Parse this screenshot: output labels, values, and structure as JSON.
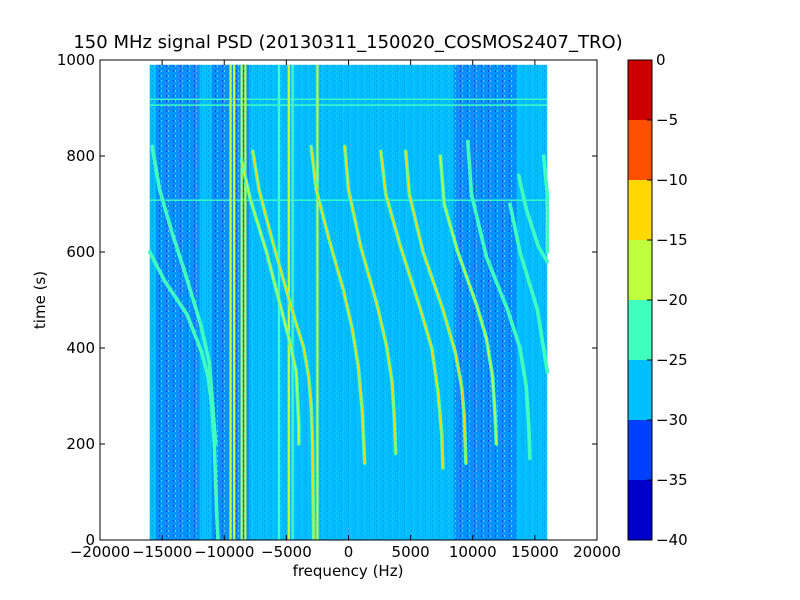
{
  "chart_data": {
    "type": "heatmap",
    "title": "150 MHz signal PSD (20130311_150020_COSMOS2407_TRO)",
    "xlabel": "frequency (Hz)",
    "ylabel": "time (s)",
    "xlim": [
      -20000,
      20000
    ],
    "ylim": [
      0,
      1000
    ],
    "x_ticks": [
      -20000,
      -15000,
      -10000,
      -5000,
      0,
      5000,
      10000,
      15000,
      20000
    ],
    "x_tick_labels": [
      "−20000",
      "−15000",
      "−10000",
      "−5000",
      "0",
      "5000",
      "10000",
      "15000",
      "20000"
    ],
    "y_ticks": [
      0,
      200,
      400,
      600,
      800,
      1000
    ],
    "y_tick_labels": [
      "0",
      "200",
      "400",
      "600",
      "800",
      "1000"
    ],
    "data_extent": {
      "x": [
        -16000,
        16000
      ],
      "y": [
        0,
        990
      ]
    },
    "background_level": -28,
    "colorbar": {
      "range": [
        -40,
        0
      ],
      "ticks": [
        0,
        -5,
        -10,
        -15,
        -20,
        -25,
        -30,
        -35,
        -40
      ],
      "tick_labels": [
        "0",
        "−5",
        "−10",
        "−15",
        "−20",
        "−25",
        "−30",
        "−35",
        "−40"
      ],
      "levels": [
        {
          "from": -40,
          "to": -35,
          "color": "#0000cc"
        },
        {
          "from": -35,
          "to": -30,
          "color": "#0040ff"
        },
        {
          "from": -30,
          "to": -25,
          "color": "#00bfff"
        },
        {
          "from": -25,
          "to": -20,
          "color": "#40ffbf"
        },
        {
          "from": -20,
          "to": -15,
          "color": "#bfff40"
        },
        {
          "from": -15,
          "to": -10,
          "color": "#ffd700"
        },
        {
          "from": -10,
          "to": -5,
          "color": "#ff5000"
        },
        {
          "from": -5,
          "to": 0,
          "color": "#cc0000"
        }
      ]
    },
    "noise_bands": [
      {
        "x": [
          -11000,
          -8000
        ],
        "level": -33
      },
      {
        "x": [
          -15500,
          -12000
        ],
        "level": -31
      },
      {
        "x": [
          8500,
          12500
        ],
        "level": -33
      },
      {
        "x": [
          12500,
          13500
        ],
        "level": -32
      }
    ],
    "vertical_lines": [
      {
        "x": -9500,
        "level": -17
      },
      {
        "x": -9200,
        "level": -17
      },
      {
        "x": -8600,
        "level": -17
      },
      {
        "x": -8300,
        "level": -17
      },
      {
        "x": -5600,
        "level": -23
      },
      {
        "x": -4800,
        "level": -18
      },
      {
        "x": -4500,
        "level": -23
      },
      {
        "x": -2500,
        "level": -17
      }
    ],
    "horizontal_lines": [
      {
        "y": 918,
        "level": -24
      },
      {
        "y": 906,
        "level": -22
      },
      {
        "y": 708,
        "level": -24
      }
    ],
    "doppler_traces": [
      {
        "name": "trace-1",
        "level": -21,
        "points": [
          [
            -16000,
            600
          ],
          [
            -14800,
            540
          ],
          [
            -13000,
            470
          ],
          [
            -11800,
            390
          ],
          [
            -11300,
            340
          ],
          [
            -11000,
            280
          ],
          [
            -10800,
            200
          ],
          [
            -10600,
            50
          ],
          [
            -10500,
            0
          ]
        ]
      },
      {
        "name": "trace-2",
        "level": -21,
        "points": [
          [
            -15800,
            820
          ],
          [
            -15200,
            730
          ],
          [
            -14200,
            640
          ],
          [
            -13200,
            560
          ],
          [
            -11900,
            450
          ],
          [
            -11200,
            370
          ],
          [
            -10900,
            270
          ],
          [
            -10700,
            200
          ]
        ]
      },
      {
        "name": "trace-3",
        "level": -14,
        "points": [
          [
            -7700,
            810
          ],
          [
            -7200,
            730
          ],
          [
            -6200,
            630
          ],
          [
            -5000,
            520
          ],
          [
            -4200,
            450
          ],
          [
            -3600,
            400
          ],
          [
            -3200,
            340
          ],
          [
            -3000,
            280
          ],
          [
            -2900,
            200
          ],
          [
            -2800,
            0
          ]
        ]
      },
      {
        "name": "trace-4",
        "level": -18,
        "points": [
          [
            -8600,
            790
          ],
          [
            -7900,
            710
          ],
          [
            -6600,
            600
          ],
          [
            -5600,
            500
          ],
          [
            -4800,
            420
          ],
          [
            -4200,
            350
          ],
          [
            -4000,
            240
          ],
          [
            -4000,
            200
          ]
        ]
      },
      {
        "name": "trace-5",
        "level": -13,
        "points": [
          [
            -3000,
            820
          ],
          [
            -2600,
            730
          ],
          [
            -1500,
            620
          ],
          [
            -400,
            520
          ],
          [
            300,
            440
          ],
          [
            800,
            360
          ],
          [
            1100,
            270
          ],
          [
            1300,
            160
          ]
        ]
      },
      {
        "name": "trace-6",
        "level": -12,
        "points": [
          [
            -300,
            820
          ],
          [
            0,
            730
          ],
          [
            1000,
            610
          ],
          [
            2300,
            490
          ],
          [
            3100,
            400
          ],
          [
            3500,
            330
          ],
          [
            3700,
            250
          ],
          [
            3800,
            180
          ]
        ]
      },
      {
        "name": "trace-7",
        "level": -12,
        "points": [
          [
            2600,
            810
          ],
          [
            3000,
            720
          ],
          [
            4200,
            610
          ],
          [
            5800,
            480
          ],
          [
            6700,
            400
          ],
          [
            7200,
            310
          ],
          [
            7500,
            220
          ],
          [
            7600,
            150
          ]
        ]
      },
      {
        "name": "trace-8",
        "level": -13,
        "points": [
          [
            4600,
            810
          ],
          [
            4900,
            720
          ],
          [
            6000,
            600
          ],
          [
            7600,
            480
          ],
          [
            8600,
            390
          ],
          [
            9100,
            320
          ],
          [
            9300,
            260
          ],
          [
            9400,
            200
          ],
          [
            9450,
            160
          ]
        ]
      },
      {
        "name": "trace-9",
        "level": -19,
        "points": [
          [
            7400,
            800
          ],
          [
            7700,
            700
          ],
          [
            8800,
            600
          ],
          [
            10300,
            490
          ],
          [
            11100,
            420
          ],
          [
            11600,
            340
          ],
          [
            11800,
            260
          ],
          [
            11900,
            200
          ]
        ]
      },
      {
        "name": "trace-10",
        "level": -21,
        "points": [
          [
            9600,
            830
          ],
          [
            9900,
            720
          ],
          [
            11100,
            590
          ],
          [
            12800,
            480
          ],
          [
            13800,
            400
          ],
          [
            14300,
            320
          ],
          [
            14500,
            240
          ],
          [
            14600,
            170
          ]
        ]
      },
      {
        "name": "trace-11",
        "level": -23,
        "points": [
          [
            13000,
            700
          ],
          [
            13800,
            600
          ],
          [
            15200,
            480
          ],
          [
            16000,
            350
          ]
        ]
      },
      {
        "name": "trace-12",
        "level": -21,
        "points": [
          [
            15700,
            800
          ],
          [
            16000,
            720
          ],
          [
            16000,
            600
          ]
        ]
      },
      {
        "name": "trace-13",
        "level": -23,
        "points": [
          [
            13700,
            760
          ],
          [
            14300,
            690
          ],
          [
            15300,
            610
          ],
          [
            16000,
            580
          ]
        ]
      }
    ]
  }
}
